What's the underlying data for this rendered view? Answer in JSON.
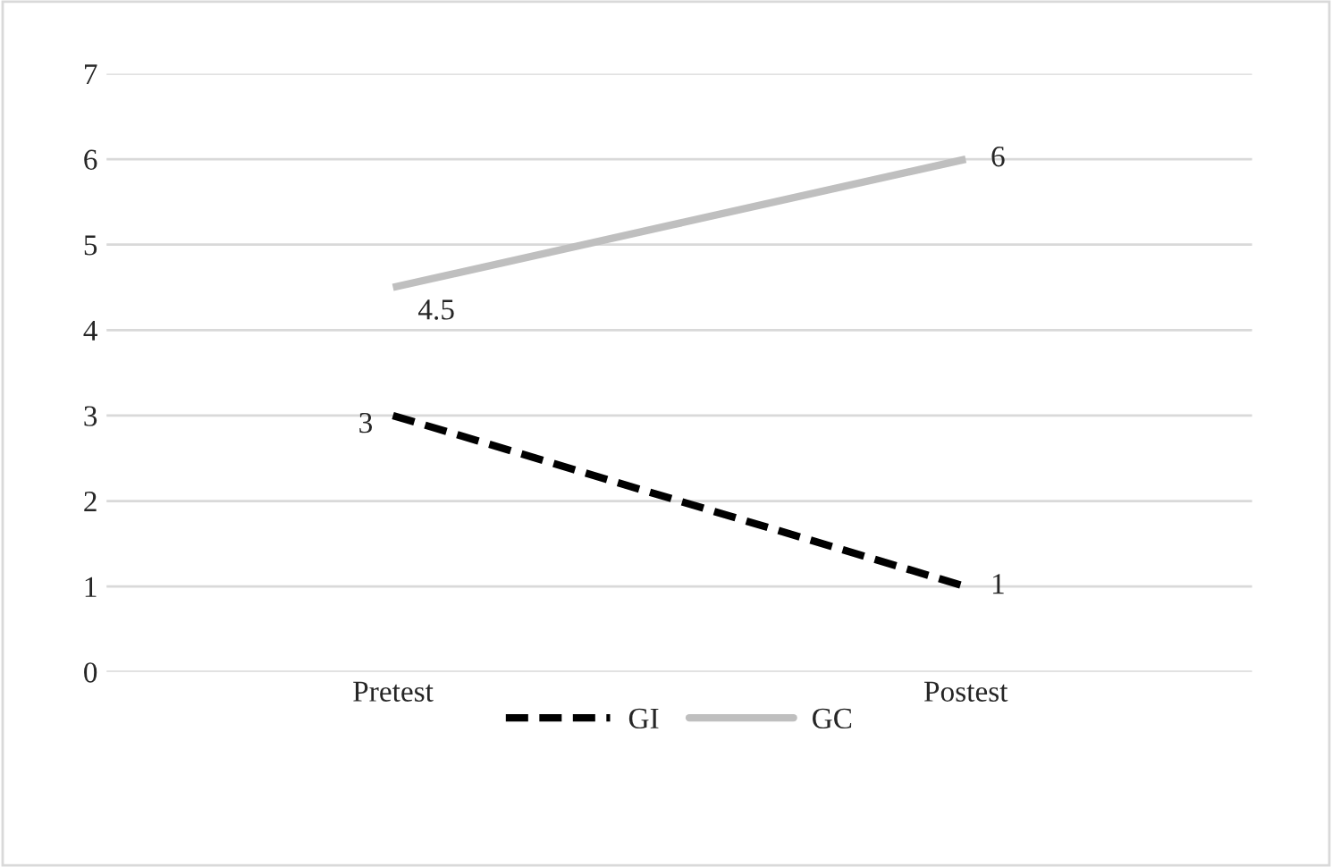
{
  "chart_data": {
    "type": "line",
    "categories": [
      "Pretest",
      "Postest"
    ],
    "series": [
      {
        "name": "GI",
        "color": "#000000",
        "values": [
          3,
          1
        ],
        "line_style": "dashed"
      },
      {
        "name": "GC",
        "color": "#bfbfbf",
        "values": [
          4.5,
          6
        ],
        "line_style": "solid"
      }
    ],
    "ylim": [
      0,
      7
    ],
    "yticks": [
      0,
      1,
      2,
      3,
      4,
      5,
      6,
      7
    ],
    "grid": "y",
    "legend": "bottom",
    "data_labels": true,
    "marker": "none"
  }
}
